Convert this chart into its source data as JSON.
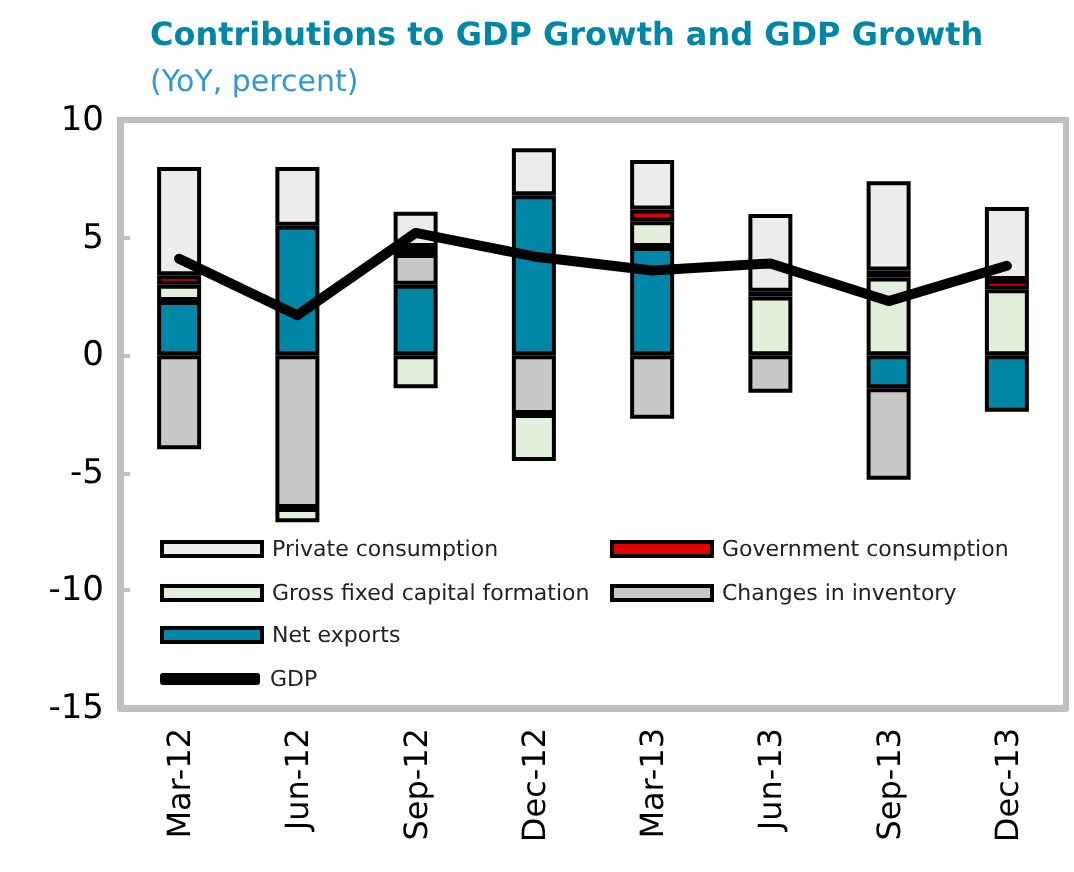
{
  "chart_data": {
    "type": "bar",
    "stacked": true,
    "title": "Contributions to GDP Growth and GDP Growth",
    "subtitle": "(YoY, percent)",
    "categories": [
      "Mar-12",
      "Jun-12",
      "Sep-12",
      "Dec-12",
      "Mar-13",
      "Jun-13",
      "Sep-13",
      "Dec-13"
    ],
    "series": [
      {
        "name": "Net exports",
        "color": "#0087a8",
        "values": [
          2.3,
          5.5,
          3.0,
          6.8,
          4.6,
          null,
          -1.4,
          -2.4
        ]
      },
      {
        "name": "Changes in inventory",
        "color": "#c8c8c8",
        "values": [
          -4.0,
          -6.5,
          1.3,
          -2.5,
          -2.7,
          -1.6,
          -3.9,
          null
        ]
      },
      {
        "name": "Gross fixed capital formation",
        "color": "#e2efda",
        "values": [
          0.7,
          -0.6,
          -1.4,
          -2.0,
          1.1,
          2.5,
          3.3,
          2.8
        ]
      },
      {
        "name": "Government consumption",
        "color": "#e00000",
        "values": [
          0.4,
          null,
          0.3,
          null,
          0.5,
          0.2,
          0.3,
          0.4
        ]
      },
      {
        "name": "Private consumption",
        "color": "#ececec",
        "values": [
          4.6,
          2.5,
          1.5,
          2.0,
          2.1,
          3.3,
          3.8,
          3.1
        ]
      },
      {
        "name": "GDP",
        "type": "line",
        "color": "#000000",
        "values": [
          4.1,
          1.7,
          5.2,
          4.2,
          3.6,
          3.9,
          2.3,
          3.8
        ]
      }
    ],
    "ylim": [
      -15,
      10
    ],
    "yticks": [
      -15,
      -10,
      -5,
      0,
      5,
      10
    ],
    "grid": false,
    "legend": "bottom left"
  }
}
